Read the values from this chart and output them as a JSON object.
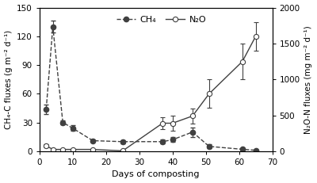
{
  "ch4_x": [
    2,
    4,
    7,
    10,
    16,
    25,
    37,
    40,
    46,
    51,
    61,
    65
  ],
  "ch4_y": [
    44,
    130,
    30,
    24,
    11,
    10,
    10,
    12,
    20,
    5,
    2,
    1
  ],
  "ch4_yerr": [
    5,
    6,
    2,
    3,
    1.5,
    1.5,
    2,
    2.5,
    5,
    2,
    1,
    0.5
  ],
  "n2o_x": [
    2,
    4,
    7,
    10,
    16,
    25,
    37,
    40,
    46,
    51,
    61,
    65
  ],
  "n2o_y": [
    75,
    25,
    25,
    25,
    25,
    5,
    390,
    390,
    490,
    800,
    1250,
    1600
  ],
  "n2o_yerr": [
    20,
    10,
    10,
    10,
    10,
    5,
    80,
    100,
    100,
    200,
    250,
    200
  ],
  "xlabel": "Days of composting",
  "ylabel_left": "CH₄-C fluxes (g m⁻² d⁻¹)",
  "ylabel_right": "N₂O-N fluxes (mg m⁻² d⁻¹)",
  "xlim": [
    0,
    70
  ],
  "ylim_left": [
    0,
    150
  ],
  "ylim_right": [
    0,
    2000
  ],
  "xticks": [
    0,
    10,
    20,
    30,
    40,
    50,
    60,
    70
  ],
  "yticks_left": [
    0,
    30,
    60,
    90,
    120,
    150
  ],
  "yticks_right": [
    0,
    500,
    1000,
    1500,
    2000
  ],
  "legend_ch4": "CH₄",
  "legend_n2o": "N₂O",
  "line_color": "#404040",
  "bg_color": "#ffffff",
  "marker_size": 4.5,
  "linewidth": 1.0,
  "capsize": 2.5,
  "elinewidth": 0.8,
  "xlabel_fontsize": 8,
  "ylabel_fontsize": 7.5,
  "tick_fontsize": 7.5,
  "legend_fontsize": 8
}
